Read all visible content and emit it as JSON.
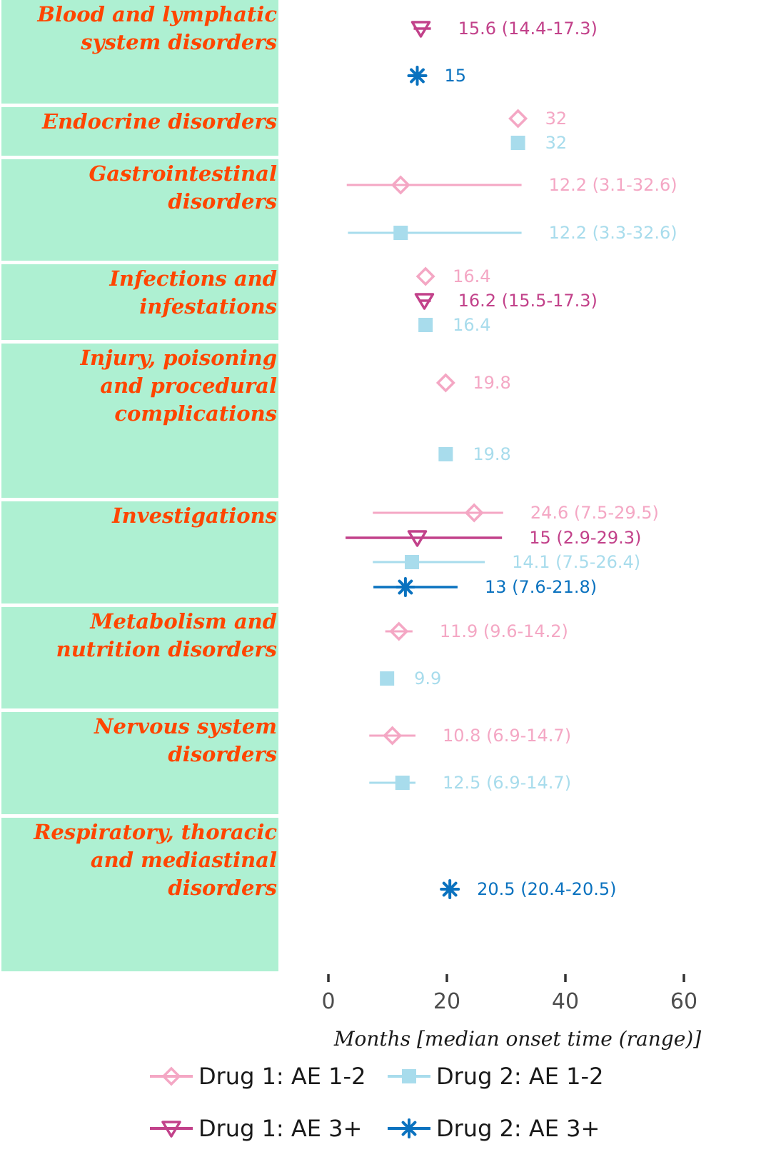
{
  "chart_data": {
    "type": "forest",
    "xlabel": "Months [median onset time (range)]",
    "xlim": [
      0,
      60
    ],
    "xticks": [
      0,
      20,
      40,
      60
    ],
    "grid": false,
    "legend_position": "bottom",
    "series": [
      {
        "key": "d1_12",
        "name": "Drug 1: AE 1-2",
        "color": "#F4A7C4",
        "marker": "diamond-open"
      },
      {
        "key": "d2_12",
        "name": "Drug 2: AE 1-2",
        "color": "#A8DCEC",
        "marker": "square-filled"
      },
      {
        "key": "d1_3",
        "name": "Drug 1: AE 3+",
        "color": "#C2418A",
        "marker": "triangle-down-open"
      },
      {
        "key": "d2_3",
        "name": "Drug 2: AE 3+",
        "color": "#0A72BF",
        "marker": "asterisk"
      }
    ],
    "strip_color": "#AEF0D2",
    "strip_text_color": "#FF4500",
    "panels": [
      {
        "label": [
          "Blood and lymphatic",
          "system disorders"
        ],
        "points": [
          {
            "series": "d1_3",
            "median": 15.6,
            "low": 14.4,
            "high": 17.3,
            "label": "15.6 (14.4-17.3)"
          },
          {
            "series": "d2_3",
            "median": 15,
            "label": "15"
          }
        ]
      },
      {
        "label": [
          "Endocrine disorders"
        ],
        "points": [
          {
            "series": "d1_12",
            "median": 32,
            "label": "32"
          },
          {
            "series": "d2_12",
            "median": 32,
            "label": "32"
          }
        ]
      },
      {
        "label": [
          "Gastrointestinal",
          "disorders"
        ],
        "points": [
          {
            "series": "d1_12",
            "median": 12.2,
            "low": 3.1,
            "high": 32.6,
            "label": "12.2 (3.1-32.6)"
          },
          {
            "series": "d2_12",
            "median": 12.2,
            "low": 3.3,
            "high": 32.6,
            "label": "12.2 (3.3-32.6)"
          }
        ]
      },
      {
        "label": [
          "Infections and",
          "infestations"
        ],
        "points": [
          {
            "series": "d1_12",
            "median": 16.4,
            "label": "16.4"
          },
          {
            "series": "d1_3",
            "median": 16.2,
            "low": 15.5,
            "high": 17.3,
            "label": "16.2 (15.5-17.3)"
          },
          {
            "series": "d2_12",
            "median": 16.4,
            "label": "16.4"
          }
        ]
      },
      {
        "label": [
          "Injury, poisoning",
          "and procedural",
          "complications"
        ],
        "points": [
          {
            "series": "d1_12",
            "median": 19.8,
            "label": "19.8"
          },
          {
            "series": "d2_12",
            "median": 19.8,
            "label": "19.8"
          }
        ]
      },
      {
        "label": [
          "Investigations"
        ],
        "points": [
          {
            "series": "d1_12",
            "median": 24.6,
            "low": 7.5,
            "high": 29.5,
            "label": "24.6 (7.5-29.5)"
          },
          {
            "series": "d1_3",
            "median": 15,
            "low": 2.9,
            "high": 29.3,
            "label": "15 (2.9-29.3)"
          },
          {
            "series": "d2_12",
            "median": 14.1,
            "low": 7.5,
            "high": 26.4,
            "label": "14.1 (7.5-26.4)"
          },
          {
            "series": "d2_3",
            "median": 13,
            "low": 7.6,
            "high": 21.8,
            "label": "13 (7.6-21.8)"
          }
        ]
      },
      {
        "label": [
          "Metabolism and",
          "nutrition disorders"
        ],
        "points": [
          {
            "series": "d1_12",
            "median": 11.9,
            "low": 9.6,
            "high": 14.2,
            "label": "11.9 (9.6-14.2)"
          },
          {
            "series": "d2_12",
            "median": 9.9,
            "label": "9.9"
          }
        ]
      },
      {
        "label": [
          "Nervous system",
          "disorders"
        ],
        "points": [
          {
            "series": "d1_12",
            "median": 10.8,
            "low": 6.9,
            "high": 14.7,
            "label": "10.8 (6.9-14.7)"
          },
          {
            "series": "d2_12",
            "median": 12.5,
            "low": 6.9,
            "high": 14.7,
            "label": "12.5 (6.9-14.7)"
          }
        ]
      },
      {
        "label": [
          "Respiratory, thoracic",
          "and mediastinal",
          "disorders"
        ],
        "points": [
          {
            "series": "d2_3",
            "median": 20.5,
            "low": 20.4,
            "high": 20.5,
            "label": "20.5 (20.4-20.5)"
          }
        ]
      }
    ]
  }
}
